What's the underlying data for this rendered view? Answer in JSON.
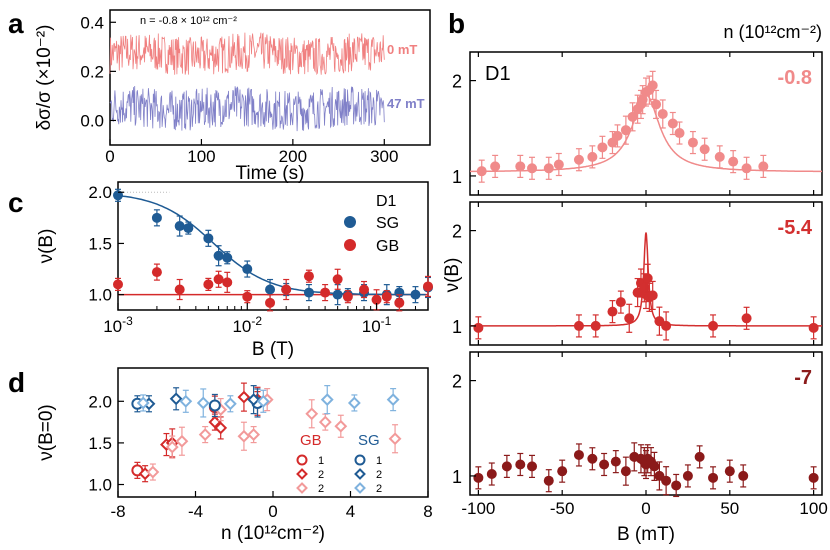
{
  "panel_labels": {
    "a": "a",
    "b": "b",
    "c": "c",
    "d": "d"
  },
  "colors": {
    "zero_mT": "#f08080",
    "h47_mT": "#8080c8",
    "sg": "#1f5b94",
    "gb": "#d42a2a",
    "light_pink": "#f08a8a",
    "mid_red": "#d32f2f",
    "dark_red": "#8b1a1a",
    "sg_light": "#7fb2de",
    "gb_light": "#f29a9a"
  },
  "chart_data": [
    {
      "type": "line",
      "panel": "a",
      "title": "",
      "annotation": "n = -0.8 × 10¹² cm⁻²",
      "xlabel": "Time (s)",
      "ylabel": "δσ/σ (×10⁻²)",
      "xlim": [
        0,
        350
      ],
      "ylim": [
        -0.1,
        0.45
      ],
      "xticks": [
        "0",
        "100",
        "200",
        "300"
      ],
      "yticks": [
        "0.0",
        "0.2",
        "0.4"
      ],
      "series": [
        {
          "name": "0 mT",
          "mean": 0.27,
          "noise_range": [
            0.18,
            0.38
          ]
        },
        {
          "name": "47 mT",
          "mean": 0.05,
          "noise_range": [
            -0.06,
            0.15
          ]
        }
      ]
    },
    {
      "type": "scatter",
      "panel": "b",
      "title": "n (10¹²cm⁻²)",
      "sample": "D1",
      "xlabel": "B (mT)",
      "ylabel": "ν(B)",
      "xlim": [
        -105,
        105
      ],
      "xticks": [
        "-100",
        "-50",
        "0",
        "50",
        "100"
      ],
      "subplots": [
        {
          "label": "-0.8",
          "ylim": [
            0.8,
            2.3
          ],
          "yticks": [
            "1",
            "2"
          ],
          "points": [
            [
              -98,
              1.05
            ],
            [
              -90,
              1.1
            ],
            [
              -75,
              1.1
            ],
            [
              -68,
              1.08
            ],
            [
              -58,
              1.08
            ],
            [
              -52,
              1.12
            ],
            [
              -40,
              1.17
            ],
            [
              -32,
              1.2
            ],
            [
              -26,
              1.3
            ],
            [
              -20,
              1.35
            ],
            [
              -17,
              1.42
            ],
            [
              -12,
              1.48
            ],
            [
              -8,
              1.62
            ],
            [
              -5,
              1.7
            ],
            [
              -3,
              1.75
            ],
            [
              -2,
              1.8
            ],
            [
              0,
              1.88
            ],
            [
              2,
              1.9
            ],
            [
              4,
              1.95
            ],
            [
              6,
              1.75
            ],
            [
              10,
              1.65
            ],
            [
              16,
              1.55
            ],
            [
              20,
              1.45
            ],
            [
              28,
              1.35
            ],
            [
              35,
              1.28
            ],
            [
              44,
              1.2
            ],
            [
              52,
              1.15
            ],
            [
              60,
              1.08
            ],
            [
              70,
              1.1
            ]
          ],
          "fit_peak": 1.85,
          "fit_base": 1.04
        },
        {
          "label": "-5.4",
          "ylim": [
            0.8,
            2.3
          ],
          "yticks": [
            "1",
            "2"
          ],
          "points": [
            [
              -100,
              0.98
            ],
            [
              -40,
              1.0
            ],
            [
              -30,
              1.0
            ],
            [
              -20,
              1.15
            ],
            [
              -15,
              1.25
            ],
            [
              -10,
              1.08
            ],
            [
              -5,
              1.35
            ],
            [
              -3,
              1.45
            ],
            [
              -1,
              1.4
            ],
            [
              0,
              1.33
            ],
            [
              1,
              1.5
            ],
            [
              2,
              1.3
            ],
            [
              4,
              1.32
            ],
            [
              8,
              1.05
            ],
            [
              12,
              1.0
            ],
            [
              40,
              1.0
            ],
            [
              60,
              1.08
            ],
            [
              100,
              0.98
            ]
          ],
          "fit_peak": 1.98,
          "fit_base": 1.0
        },
        {
          "label": "-7",
          "ylim": [
            0.8,
            2.3
          ],
          "yticks": [
            "1",
            "2"
          ],
          "points": [
            [
              -100,
              0.98
            ],
            [
              -92,
              1.02
            ],
            [
              -83,
              1.1
            ],
            [
              -75,
              1.12
            ],
            [
              -68,
              1.1
            ],
            [
              -58,
              0.95
            ],
            [
              -50,
              1.05
            ],
            [
              -40,
              1.22
            ],
            [
              -32,
              1.18
            ],
            [
              -25,
              1.12
            ],
            [
              -18,
              1.15
            ],
            [
              -12,
              1.05
            ],
            [
              -7,
              1.2
            ],
            [
              -3,
              1.18
            ],
            [
              -1,
              1.15
            ],
            [
              0,
              1.12
            ],
            [
              1,
              1.18
            ],
            [
              3,
              1.15
            ],
            [
              5,
              1.1
            ],
            [
              8,
              1.0
            ],
            [
              12,
              0.95
            ],
            [
              18,
              0.9
            ],
            [
              25,
              1.0
            ],
            [
              32,
              1.2
            ],
            [
              40,
              0.98
            ],
            [
              50,
              1.05
            ],
            [
              58,
              1.0
            ],
            [
              100,
              0.98
            ]
          ]
        }
      ]
    },
    {
      "type": "scatter",
      "panel": "c",
      "title": "",
      "xlabel": "B (T)",
      "ylabel": "ν(B)",
      "xscale": "log",
      "xlim": [
        0.001,
        0.25
      ],
      "ylim": [
        0.85,
        2.1
      ],
      "xticks": [
        "10⁻³",
        "10⁻²",
        "10⁻¹"
      ],
      "yticks": [
        "1.0",
        "1.5",
        "2.0"
      ],
      "legend": {
        "title": "D1",
        "entries": [
          "SG",
          "GB"
        ],
        "placement": "top-right"
      },
      "series": [
        {
          "name": "SG",
          "x": [
            0.001,
            0.002,
            0.003,
            0.0035,
            0.005,
            0.006,
            0.007,
            0.01,
            0.015,
            0.02,
            0.03,
            0.05,
            0.06,
            0.08,
            0.12,
            0.15,
            0.2,
            0.25
          ],
          "values": [
            1.97,
            1.75,
            1.67,
            1.65,
            1.55,
            1.38,
            1.36,
            1.25,
            1.05,
            1.05,
            1.02,
            1.0,
            1.0,
            1.02,
            1.0,
            1.02,
            1.0,
            1.07
          ]
        },
        {
          "name": "GB",
          "x": [
            0.001,
            0.002,
            0.003,
            0.005,
            0.006,
            0.007,
            0.01,
            0.015,
            0.02,
            0.03,
            0.04,
            0.05,
            0.06,
            0.08,
            0.1,
            0.12,
            0.15,
            0.25
          ],
          "values": [
            1.1,
            1.22,
            1.05,
            1.1,
            1.15,
            1.12,
            0.98,
            0.92,
            1.05,
            1.18,
            1.02,
            1.15,
            0.98,
            1.05,
            0.95,
            0.98,
            0.92,
            1.08
          ]
        }
      ],
      "fit_sg": {
        "high": 2.0,
        "low": 1.0
      },
      "fit_gb": {
        "value": 1.0
      }
    },
    {
      "type": "scatter",
      "panel": "d",
      "title": "",
      "xlabel": "n (10¹²cm⁻²)",
      "ylabel": "ν(B=0)",
      "xlim": [
        -8,
        8
      ],
      "ylim": [
        0.85,
        2.4
      ],
      "xticks": [
        "-8",
        "-4",
        "0",
        "4",
        "8"
      ],
      "yticks": [
        "1.0",
        "1.5",
        "2.0"
      ],
      "legend": {
        "groups": [
          "GB",
          "SG"
        ],
        "rows": [
          "1",
          "2",
          "2"
        ]
      },
      "series": [
        {
          "name": "GB 1",
          "marker": "circle",
          "color": "gb",
          "x": [
            -7,
            -3,
            -0.8
          ],
          "values": [
            1.17,
            1.93,
            2.0
          ]
        },
        {
          "name": "GB 2",
          "marker": "diamond",
          "color": "gb",
          "x": [
            -6.6,
            -5.5,
            -5.2,
            -3.0,
            -2.7,
            -1.5,
            -0.8
          ],
          "values": [
            1.13,
            1.48,
            1.5,
            1.75,
            1.68,
            2.05,
            2.02
          ]
        },
        {
          "name": "GB 2b",
          "marker": "diamond",
          "color": "gb_light",
          "x": [
            -6.2,
            -5.2,
            -4.7,
            -3.5,
            -2.7,
            -1.5,
            -1.0,
            -0.3,
            2.0,
            2.7,
            3.5,
            6.3
          ],
          "values": [
            1.15,
            1.45,
            1.52,
            1.6,
            1.9,
            1.58,
            1.6,
            2.02,
            1.85,
            1.75,
            1.7,
            1.55
          ]
        },
        {
          "name": "SG 1",
          "marker": "circle",
          "color": "sg",
          "x": [
            -7,
            -3,
            -0.8
          ],
          "values": [
            1.97,
            1.95,
            1.98
          ]
        },
        {
          "name": "SG 2",
          "marker": "diamond",
          "color": "sg",
          "x": [
            -6.4,
            -5.0,
            -1.0
          ],
          "values": [
            1.97,
            2.03,
            2.02
          ]
        },
        {
          "name": "SG 2b",
          "marker": "diamond",
          "color": "sg_light",
          "x": [
            -6.7,
            -4.5,
            -3.6,
            -2.2,
            -0.5,
            2.8,
            4.2,
            6.2
          ],
          "values": [
            1.98,
            2.0,
            1.98,
            1.97,
            2.0,
            2.02,
            1.98,
            2.02
          ]
        }
      ]
    }
  ]
}
